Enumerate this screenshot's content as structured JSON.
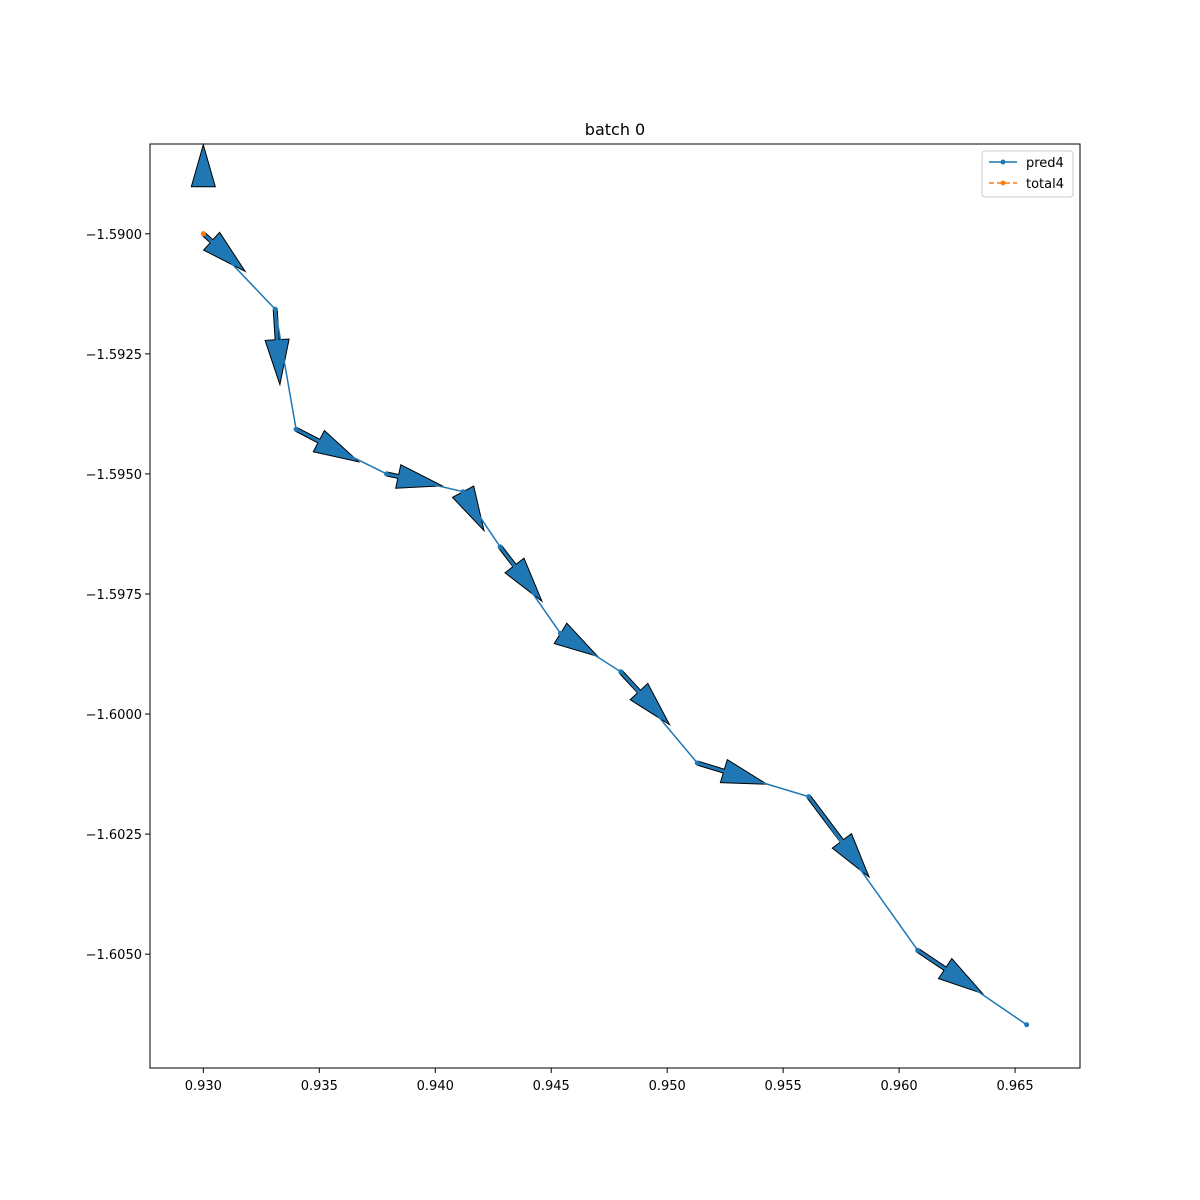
{
  "chart_data": {
    "type": "line",
    "title": "batch 0",
    "xlabel": "",
    "ylabel": "",
    "xlim": [
      0.9277,
      0.9678
    ],
    "ylim": [
      -1.60737,
      -1.58813
    ],
    "xticks": [
      0.93,
      0.935,
      0.94,
      0.945,
      0.95,
      0.955,
      0.96,
      0.965
    ],
    "xtick_labels": [
      "0.930",
      "0.935",
      "0.940",
      "0.945",
      "0.950",
      "0.955",
      "0.960",
      "0.965"
    ],
    "yticks": [
      -1.59,
      -1.5925,
      -1.595,
      -1.5975,
      -1.6,
      -1.6025,
      -1.605
    ],
    "ytick_labels": [
      "−1.5900",
      "−1.5925",
      "−1.5950",
      "−1.5975",
      "−1.6000",
      "−1.6025",
      "−1.6050"
    ],
    "grid": false,
    "legend_position": "top-right",
    "series": [
      {
        "name": "pred4",
        "color": "#1f77b4",
        "linestyle": "solid",
        "marker": "dot",
        "x": [
          0.93,
          0.9331,
          0.934,
          0.9379,
          0.9412,
          0.9428,
          0.9454,
          0.948,
          0.9513,
          0.9561,
          0.9608,
          0.9655
        ],
        "y": [
          -1.59,
          -1.59157,
          -1.59407,
          -1.595,
          -1.59537,
          -1.59652,
          -1.59832,
          -1.59912,
          -1.60102,
          -1.60172,
          -1.60492,
          -1.60647
        ]
      },
      {
        "name": "total4",
        "color": "#ff7f0e",
        "linestyle": "dashed",
        "marker": "dot",
        "x": [
          0.93
        ],
        "y": [
          -1.59
        ]
      }
    ],
    "arrows": {
      "color": "#1f77b4",
      "edge_color": "#000000",
      "segments": [
        {
          "x": 0.93,
          "y": -1.58902,
          "dx": 0.0,
          "dy": 0.0
        },
        {
          "x": 0.93,
          "y": -1.59,
          "dx": 0.0018,
          "dy": -0.00078
        },
        {
          "x": 0.9331,
          "y": -1.59157,
          "dx": 0.0002,
          "dy": -0.00157
        },
        {
          "x": 0.934,
          "y": -1.59407,
          "dx": 0.0027,
          "dy": -0.00068
        },
        {
          "x": 0.9379,
          "y": -1.595,
          "dx": 0.0024,
          "dy": -0.00025
        },
        {
          "x": 0.9412,
          "y": -1.59537,
          "dx": 0.0009,
          "dy": -0.00081
        },
        {
          "x": 0.9428,
          "y": -1.59652,
          "dx": 0.0018,
          "dy": -0.00113
        },
        {
          "x": 0.9454,
          "y": -1.59832,
          "dx": 0.0016,
          "dy": -0.00048
        },
        {
          "x": 0.948,
          "y": -1.59912,
          "dx": 0.0021,
          "dy": -0.0011
        },
        {
          "x": 0.9513,
          "y": -1.60102,
          "dx": 0.003,
          "dy": -0.00044
        },
        {
          "x": 0.9561,
          "y": -1.60172,
          "dx": 0.0026,
          "dy": -0.00167
        },
        {
          "x": 0.9608,
          "y": -1.60492,
          "dx": 0.0028,
          "dy": -0.0009
        }
      ]
    }
  }
}
